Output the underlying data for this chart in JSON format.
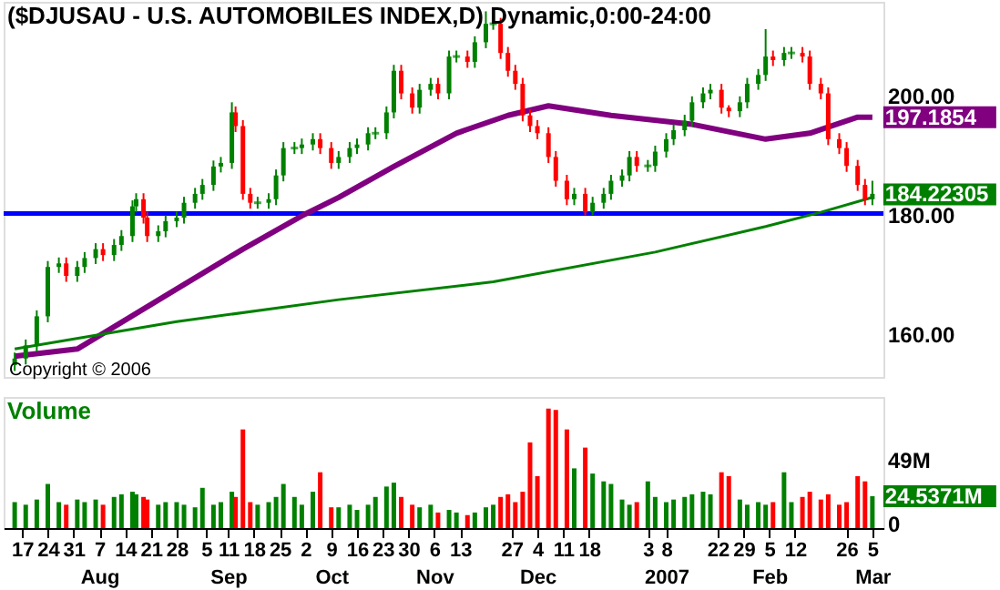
{
  "chart_data": [
    {
      "type": "candlestick",
      "title": "($DJUSAU - U.S. AUTOMOBILES INDEX,D) Dynamic,0:00-24:00",
      "x": [
        "2006-07-15",
        "2006-07-18",
        "2006-07-21",
        "2006-07-24",
        "2006-07-27",
        "2006-07-29",
        "2006-08-01",
        "2006-08-03",
        "2006-08-06",
        "2006-08-08",
        "2006-08-11",
        "2006-08-13",
        "2006-08-16",
        "2006-08-17",
        "2006-08-19",
        "2006-08-20",
        "2006-08-23",
        "2006-08-25",
        "2006-08-28",
        "2006-08-30",
        "2006-09-02",
        "2006-09-04",
        "2006-09-07",
        "2006-09-09",
        "2006-09-12",
        "2006-09-13",
        "2006-09-15",
        "2006-09-17",
        "2006-09-19",
        "2006-09-22",
        "2006-09-24",
        "2006-09-26",
        "2006-09-29",
        "2006-10-01",
        "2006-10-04",
        "2006-10-06",
        "2006-10-09",
        "2006-10-11",
        "2006-10-14",
        "2006-10-16",
        "2006-10-19",
        "2006-10-21",
        "2006-10-24",
        "2006-10-26",
        "2006-10-28",
        "2006-10-31",
        "2006-11-02",
        "2006-11-05",
        "2006-11-07",
        "2006-11-10",
        "2006-11-12",
        "2006-11-15",
        "2006-11-17",
        "2006-11-20",
        "2006-11-22",
        "2006-11-24",
        "2006-11-26",
        "2006-11-28",
        "2006-11-30",
        "2006-12-02",
        "2006-12-04",
        "2006-12-07",
        "2006-12-09",
        "2006-12-12",
        "2006-12-14",
        "2006-12-17",
        "2006-12-19",
        "2006-12-22",
        "2006-12-24",
        "2006-12-27",
        "2006-12-29",
        "2006-12-31",
        "2007-01-03",
        "2007-01-05",
        "2007-01-08",
        "2007-01-10",
        "2007-01-13",
        "2007-01-15",
        "2007-01-18",
        "2007-01-20",
        "2007-01-23",
        "2007-01-25",
        "2007-01-28",
        "2007-01-30",
        "2007-02-02",
        "2007-02-04",
        "2007-02-06",
        "2007-02-09",
        "2007-02-11",
        "2007-02-14",
        "2007-02-16",
        "2007-02-19",
        "2007-02-21",
        "2007-02-24",
        "2007-02-26",
        "2007-03-01",
        "2007-03-03",
        "2007-03-05"
      ],
      "ohlc": [
        [
          155.5,
          157.6,
          154.5,
          156.6
        ],
        [
          156.6,
          159.8,
          155.6,
          158.8
        ],
        [
          158.8,
          164.7,
          157.8,
          163.7
        ],
        [
          163.7,
          173.0,
          162.7,
          172.0
        ],
        [
          172.0,
          173.6,
          171.0,
          172.6
        ],
        [
          172.6,
          173.6,
          169.5,
          170.5
        ],
        [
          170.5,
          173.0,
          169.5,
          172.0
        ],
        [
          172.0,
          174.5,
          171.0,
          173.5
        ],
        [
          173.5,
          176.0,
          172.5,
          175.0
        ],
        [
          175.0,
          176.0,
          173.0,
          174.0
        ],
        [
          174.0,
          176.7,
          173.0,
          175.7
        ],
        [
          175.7,
          178.2,
          174.7,
          177.2
        ],
        [
          177.2,
          183.2,
          176.2,
          182.2
        ],
        [
          182.2,
          184.4,
          181.2,
          183.4
        ],
        [
          183.4,
          184.4,
          179.3,
          180.3
        ],
        [
          180.3,
          181.3,
          176.2,
          177.2
        ],
        [
          177.2,
          179.0,
          176.2,
          178.0
        ],
        [
          178.0,
          180.7,
          177.0,
          179.7
        ],
        [
          179.7,
          181.3,
          178.7,
          180.3
        ],
        [
          180.3,
          183.8,
          179.3,
          182.8
        ],
        [
          182.8,
          185.3,
          181.8,
          184.3
        ],
        [
          184.3,
          186.8,
          183.3,
          185.8
        ],
        [
          185.8,
          189.9,
          184.8,
          188.9
        ],
        [
          188.9,
          190.5,
          187.9,
          189.5
        ],
        [
          189.5,
          199.7,
          188.5,
          198.0
        ],
        [
          198.0,
          199.0,
          194.7,
          195.7
        ],
        [
          195.7,
          196.7,
          183.3,
          184.3
        ],
        [
          184.3,
          185.3,
          181.8,
          182.8
        ],
        [
          182.8,
          183.8,
          181.8,
          182.8
        ],
        [
          182.8,
          184.4,
          181.8,
          183.4
        ],
        [
          183.4,
          188.4,
          182.4,
          187.4
        ],
        [
          187.4,
          193.0,
          186.4,
          192.0
        ],
        [
          192.0,
          193.0,
          191.0,
          192.0
        ],
        [
          192.0,
          193.6,
          191.0,
          192.6
        ],
        [
          192.6,
          194.5,
          191.6,
          193.5
        ],
        [
          193.5,
          194.5,
          191.0,
          192.0
        ],
        [
          192.0,
          193.0,
          188.5,
          189.5
        ],
        [
          189.5,
          191.5,
          188.5,
          190.5
        ],
        [
          190.5,
          193.0,
          189.5,
          192.0
        ],
        [
          192.0,
          193.6,
          191.0,
          192.6
        ],
        [
          192.6,
          195.5,
          191.6,
          194.5
        ],
        [
          194.5,
          195.5,
          193.5,
          194.5
        ],
        [
          194.5,
          199.0,
          193.5,
          198.0
        ],
        [
          198.0,
          206.0,
          197.0,
          205.0
        ],
        [
          205.0,
          206.0,
          200.2,
          201.2
        ],
        [
          201.2,
          202.2,
          197.8,
          198.8
        ],
        [
          198.8,
          202.8,
          197.8,
          201.8
        ],
        [
          201.8,
          203.8,
          200.8,
          202.8
        ],
        [
          202.8,
          203.8,
          200.2,
          201.2
        ],
        [
          201.2,
          208.4,
          200.2,
          207.4
        ],
        [
          207.4,
          208.4,
          206.4,
          207.4
        ],
        [
          207.4,
          208.4,
          205.5,
          206.5
        ],
        [
          206.5,
          210.8,
          205.5,
          209.8
        ],
        [
          209.8,
          215.0,
          208.8,
          212.9
        ],
        [
          212.9,
          213.9,
          211.9,
          212.9
        ],
        [
          212.9,
          213.9,
          207.0,
          208.0
        ],
        [
          208.0,
          209.0,
          204.0,
          205.0
        ],
        [
          205.0,
          206.0,
          201.8,
          202.8
        ],
        [
          202.8,
          203.8,
          196.5,
          197.5
        ],
        [
          197.5,
          198.5,
          194.7,
          195.7
        ],
        [
          195.7,
          196.7,
          193.5,
          194.5
        ],
        [
          194.5,
          195.5,
          189.5,
          190.5
        ],
        [
          190.5,
          191.5,
          185.5,
          186.5
        ],
        [
          186.5,
          187.5,
          182.4,
          183.4
        ],
        [
          183.4,
          185.3,
          182.4,
          184.3
        ],
        [
          184.3,
          185.3,
          180.7,
          181.2
        ],
        [
          181.2,
          183.8,
          180.7,
          182.8
        ],
        [
          182.8,
          185.3,
          181.8,
          184.3
        ],
        [
          184.3,
          187.5,
          183.3,
          186.5
        ],
        [
          186.5,
          188.4,
          185.5,
          187.4
        ],
        [
          187.4,
          191.5,
          186.4,
          190.5
        ],
        [
          190.5,
          191.5,
          188.0,
          189.0
        ],
        [
          189.0,
          190.0,
          188.0,
          189.0
        ],
        [
          189.0,
          192.4,
          188.0,
          191.4
        ],
        [
          191.4,
          194.5,
          190.4,
          193.5
        ],
        [
          193.5,
          196.0,
          192.5,
          195.0
        ],
        [
          195.0,
          197.6,
          194.0,
          196.6
        ],
        [
          196.6,
          200.7,
          195.6,
          199.7
        ],
        [
          199.7,
          202.2,
          198.7,
          201.2
        ],
        [
          201.2,
          202.8,
          200.2,
          201.8
        ],
        [
          201.8,
          202.8,
          197.8,
          198.8
        ],
        [
          198.8,
          199.2,
          197.2,
          198.2
        ],
        [
          198.2,
          200.7,
          197.2,
          199.7
        ],
        [
          199.7,
          203.8,
          198.7,
          202.8
        ],
        [
          202.8,
          205.3,
          201.8,
          204.3
        ],
        [
          204.3,
          212.0,
          203.3,
          207.4
        ],
        [
          207.4,
          208.4,
          205.8,
          206.8
        ],
        [
          206.8,
          209.0,
          205.8,
          208.0
        ],
        [
          208.0,
          209.0,
          207.0,
          208.0
        ],
        [
          208.0,
          209.0,
          206.4,
          207.4
        ],
        [
          207.4,
          208.4,
          201.8,
          202.8
        ],
        [
          202.8,
          203.8,
          200.2,
          201.2
        ],
        [
          201.2,
          202.2,
          192.5,
          193.5
        ],
        [
          193.5,
          194.5,
          191.0,
          192.0
        ],
        [
          192.0,
          193.0,
          188.0,
          189.0
        ],
        [
          189.0,
          190.0,
          184.8,
          185.8
        ],
        [
          185.8,
          186.8,
          182.4,
          183.4
        ],
        [
          183.4,
          186.5,
          182.4,
          184.3
        ]
      ],
      "series": [
        {
          "type": "line",
          "color": "#800080",
          "x": [
            "2006-07-15",
            "2006-08-01",
            "2006-08-28",
            "2006-09-15",
            "2006-10-01",
            "2006-10-11",
            "2006-10-26",
            "2006-11-12",
            "2006-11-26",
            "2006-12-07",
            "2006-12-24",
            "2007-01-15",
            "2007-02-04",
            "2007-02-16",
            "2007-03-01",
            "2007-03-05"
          ],
          "values": [
            157.0,
            158.2,
            168.3,
            175.0,
            180.6,
            183.7,
            188.9,
            194.5,
            197.5,
            199.1,
            197.5,
            196.0,
            193.5,
            194.5,
            197.2,
            197.2
          ]
        },
        {
          "type": "line",
          "color": "#008000",
          "x": [
            "2006-07-15",
            "2006-08-28",
            "2006-10-11",
            "2006-11-22",
            "2007-01-05",
            "2007-02-04",
            "2007-02-19",
            "2007-03-05"
          ],
          "values": [
            158.2,
            162.8,
            166.5,
            169.5,
            174.5,
            178.8,
            181.2,
            183.7
          ]
        }
      ],
      "xlim": [
        "2006-07-12",
        "2007-03-08"
      ],
      "ylim": [
        153.5,
        216.6
      ],
      "yticks": [
        {
          "value": 160,
          "label": "160.00"
        },
        {
          "value": 180,
          "label": "180.00"
        },
        {
          "value": 200,
          "label": "200.00"
        }
      ],
      "ref_lines": [
        {
          "axis": "y",
          "value": 181,
          "color": "#0000ff"
        }
      ],
      "annotations": [
        {
          "text": "197.1854",
          "x": "2007-03-05",
          "y": 197.1854
        },
        {
          "text": "184.22305",
          "x": "2007-03-05",
          "y": 184.22305
        },
        "Copyright © 2006"
      ],
      "tick_labels": "y",
      "grid": false
    },
    {
      "type": "bar",
      "title": "Volume",
      "x": [
        "2006-07-15",
        "2006-07-18",
        "2006-07-21",
        "2006-07-24",
        "2006-07-27",
        "2006-07-29",
        "2006-08-01",
        "2006-08-03",
        "2006-08-06",
        "2006-08-08",
        "2006-08-11",
        "2006-08-13",
        "2006-08-16",
        "2006-08-17",
        "2006-08-19",
        "2006-08-20",
        "2006-08-23",
        "2006-08-25",
        "2006-08-28",
        "2006-08-30",
        "2006-09-02",
        "2006-09-04",
        "2006-09-07",
        "2006-09-09",
        "2006-09-12",
        "2006-09-13",
        "2006-09-15",
        "2006-09-17",
        "2006-09-19",
        "2006-09-22",
        "2006-09-24",
        "2006-09-26",
        "2006-09-29",
        "2006-10-01",
        "2006-10-04",
        "2006-10-06",
        "2006-10-09",
        "2006-10-11",
        "2006-10-14",
        "2006-10-16",
        "2006-10-19",
        "2006-10-21",
        "2006-10-24",
        "2006-10-26",
        "2006-10-28",
        "2006-10-31",
        "2006-11-02",
        "2006-11-05",
        "2006-11-07",
        "2006-11-10",
        "2006-11-12",
        "2006-11-15",
        "2006-11-17",
        "2006-11-20",
        "2006-11-22",
        "2006-11-24",
        "2006-11-26",
        "2006-11-28",
        "2006-11-30",
        "2006-12-02",
        "2006-12-04",
        "2006-12-07",
        "2006-12-09",
        "2006-12-12",
        "2006-12-14",
        "2006-12-17",
        "2006-12-19",
        "2006-12-22",
        "2006-12-24",
        "2006-12-27",
        "2006-12-29",
        "2006-12-31",
        "2007-01-03",
        "2007-01-05",
        "2007-01-08",
        "2007-01-10",
        "2007-01-13",
        "2007-01-15",
        "2007-01-18",
        "2007-01-20",
        "2007-01-23",
        "2007-01-25",
        "2007-01-28",
        "2007-01-30",
        "2007-02-02",
        "2007-02-04",
        "2007-02-06",
        "2007-02-09",
        "2007-02-11",
        "2007-02-14",
        "2007-02-16",
        "2007-02-19",
        "2007-02-21",
        "2007-02-24",
        "2007-02-26",
        "2007-03-01",
        "2007-03-03",
        "2007-03-05"
      ],
      "values": [
        20,
        18,
        22,
        34,
        20,
        18,
        22,
        20,
        22,
        18,
        24,
        26,
        28,
        26,
        24,
        22,
        18,
        20,
        20,
        18,
        16,
        31,
        18,
        20,
        28,
        24,
        76,
        20,
        18,
        20,
        24,
        34,
        24,
        18,
        28,
        43,
        16,
        16,
        18,
        14,
        18,
        24,
        32,
        35,
        24,
        18,
        16,
        18,
        12,
        14,
        12,
        10,
        12,
        16,
        18,
        24,
        26,
        20,
        28,
        66,
        40,
        92,
        91,
        76,
        46,
        62,
        42,
        36,
        34,
        22,
        18,
        20,
        36,
        24,
        20,
        22,
        24,
        26,
        28,
        26,
        43,
        40,
        22,
        18,
        20,
        18,
        20,
        43,
        20,
        24,
        28,
        22,
        26,
        18,
        20,
        40,
        36,
        24.5371
      ],
      "colors": [
        "#008000",
        "#008000",
        "#008000",
        "#008000",
        "#008000",
        "#ff0000",
        "#008000",
        "#008000",
        "#008000",
        "#ff0000",
        "#008000",
        "#008000",
        "#008000",
        "#008000",
        "#ff0000",
        "#ff0000",
        "#008000",
        "#008000",
        "#008000",
        "#008000",
        "#008000",
        "#008000",
        "#008000",
        "#008000",
        "#008000",
        "#ff0000",
        "#ff0000",
        "#ff0000",
        "#008000",
        "#008000",
        "#008000",
        "#008000",
        "#008000",
        "#008000",
        "#008000",
        "#ff0000",
        "#ff0000",
        "#008000",
        "#008000",
        "#008000",
        "#008000",
        "#008000",
        "#008000",
        "#008000",
        "#ff0000",
        "#ff0000",
        "#008000",
        "#008000",
        "#ff0000",
        "#008000",
        "#008000",
        "#ff0000",
        "#008000",
        "#008000",
        "#008000",
        "#ff0000",
        "#ff0000",
        "#ff0000",
        "#ff0000",
        "#ff0000",
        "#ff0000",
        "#ff0000",
        "#ff0000",
        "#ff0000",
        "#008000",
        "#ff0000",
        "#008000",
        "#008000",
        "#008000",
        "#008000",
        "#008000",
        "#ff0000",
        "#008000",
        "#008000",
        "#008000",
        "#008000",
        "#008000",
        "#008000",
        "#008000",
        "#008000",
        "#ff0000",
        "#ff0000",
        "#008000",
        "#008000",
        "#008000",
        "#008000",
        "#ff0000",
        "#008000",
        "#008000",
        "#ff0000",
        "#ff0000",
        "#ff0000",
        "#ff0000",
        "#ff0000",
        "#ff0000",
        "#ff0000",
        "#ff0000",
        "#008000"
      ],
      "xlim": [
        "2006-07-12",
        "2007-03-08"
      ],
      "ylim": [
        0,
        101
      ],
      "yticks": [
        0,
        {
          "value": 49,
          "label": "49M"
        }
      ],
      "xticks": [
        {
          "value": "2006-07-17",
          "label": "17"
        },
        {
          "value": "2006-07-24",
          "label": "24"
        },
        {
          "value": "2006-07-31",
          "label": "31"
        },
        {
          "value": "2006-08-07",
          "label": "7\nAug"
        },
        {
          "value": "2006-08-14",
          "label": "14"
        },
        {
          "value": "2006-08-21",
          "label": "21"
        },
        {
          "value": "2006-08-28",
          "label": "28"
        },
        {
          "value": "2006-09-05",
          "label": "5"
        },
        {
          "value": "2006-09-11",
          "label": "11\nSep"
        },
        {
          "value": "2006-09-18",
          "label": "18"
        },
        {
          "value": "2006-09-25",
          "label": "25"
        },
        {
          "value": "2006-10-02",
          "label": "2"
        },
        {
          "value": "2006-10-09",
          "label": "9\nOct"
        },
        {
          "value": "2006-10-16",
          "label": "16"
        },
        {
          "value": "2006-10-23",
          "label": "23"
        },
        {
          "value": "2006-10-30",
          "label": "30"
        },
        {
          "value": "2006-11-06",
          "label": "6\nNov"
        },
        {
          "value": "2006-11-13",
          "label": "13"
        },
        {
          "value": "2006-11-27",
          "label": "27"
        },
        {
          "value": "2006-12-04",
          "label": "4\nDec"
        },
        {
          "value": "2006-12-11",
          "label": "11"
        },
        {
          "value": "2006-12-18",
          "label": "18"
        },
        {
          "value": "2007-01-03",
          "label": "3"
        },
        {
          "value": "2007-01-08",
          "label": "8\n2007"
        },
        {
          "value": "2007-01-22",
          "label": "22"
        },
        {
          "value": "2007-01-29",
          "label": "29"
        },
        {
          "value": "2007-02-05",
          "label": "5\nFeb"
        },
        {
          "value": "2007-02-12",
          "label": "12"
        },
        {
          "value": "2007-02-26",
          "label": "26"
        },
        {
          "value": "2007-03-05",
          "label": "5\nMar"
        }
      ],
      "annotations": [
        {
          "text": "24.5371M",
          "x": "2007-03-05",
          "y": 24.5371
        }
      ],
      "grid": false
    }
  ]
}
